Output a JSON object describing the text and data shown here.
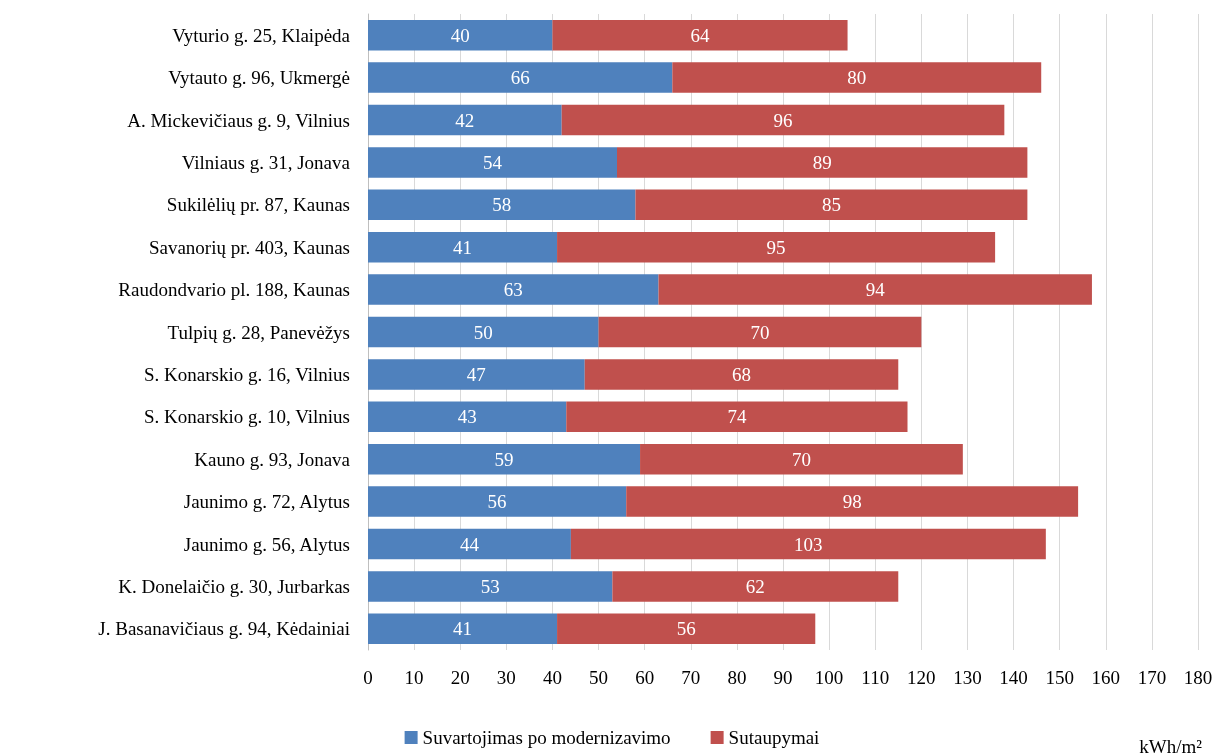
{
  "chart_data": {
    "type": "bar",
    "orientation": "horizontal",
    "stacked": true,
    "xlabel": "kWh/m²",
    "categories": [
      "Vyturio g. 25, Klaipėda",
      "Vytauto g. 96, Ukmergė",
      "A. Mickevičiaus g. 9, Vilnius",
      "Vilniaus g. 31, Jonava",
      "Sukilėlių pr. 87, Kaunas",
      "Savanorių pr. 403, Kaunas",
      "Raudondvario pl. 188, Kaunas",
      "Tulpių g. 28, Panevėžys",
      "S. Konarskio g. 16, Vilnius",
      "S. Konarskio g. 10, Vilnius",
      "Kauno g. 93, Jonava",
      "Jaunimo g. 72, Alytus",
      "Jaunimo g. 56, Alytus",
      "K. Donelaičio g. 30, Jurbarkas",
      "J. Basanavičiaus g. 94, Kėdainiai"
    ],
    "series": [
      {
        "name": "Suvartojimas po modernizavimo",
        "color": "#4f81bd",
        "values": [
          40,
          66,
          42,
          54,
          58,
          41,
          63,
          50,
          47,
          43,
          59,
          56,
          44,
          53,
          41
        ]
      },
      {
        "name": "Sutaupymai",
        "color": "#c0504d",
        "values": [
          64,
          80,
          96,
          89,
          85,
          95,
          94,
          70,
          68,
          74,
          70,
          98,
          103,
          62,
          56
        ]
      }
    ],
    "xlim": [
      0,
      180
    ],
    "xticks": [
      0,
      10,
      20,
      30,
      40,
      50,
      60,
      70,
      80,
      90,
      100,
      110,
      120,
      130,
      140,
      150,
      160,
      170,
      180
    ],
    "grid": true,
    "legend": "bottom",
    "data_labels": true
  }
}
